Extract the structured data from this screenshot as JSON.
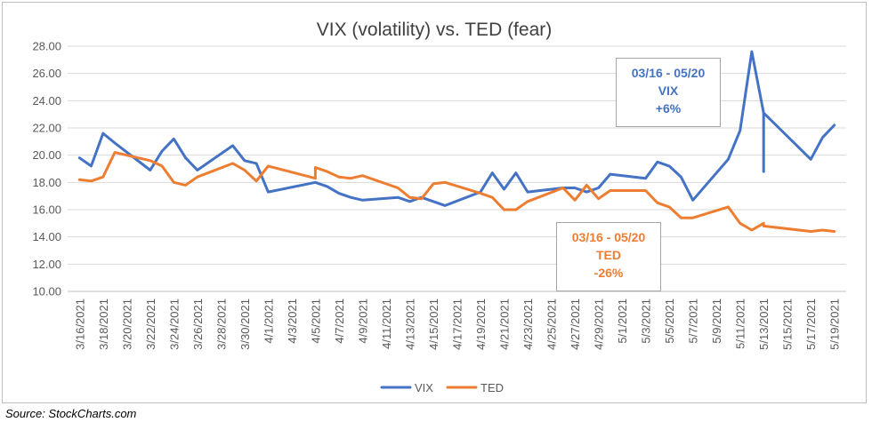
{
  "chart_data": {
    "type": "line",
    "title": "VIX (volatility) vs. TED (fear)",
    "xlabel": "",
    "ylabel": "",
    "ylim": [
      10,
      28
    ],
    "yticks": [
      "28.00",
      "26.00",
      "24.00",
      "22.00",
      "20.00",
      "18.00",
      "16.00",
      "14.00",
      "12.00",
      "10.00"
    ],
    "ytick_values": [
      28,
      26,
      24,
      22,
      20,
      18,
      16,
      14,
      12,
      10
    ],
    "categories": [
      "3/16/2021",
      "3/18/2021",
      "3/20/2021",
      "3/22/2021",
      "3/24/2021",
      "3/26/2021",
      "3/28/2021",
      "3/30/2021",
      "4/1/2021",
      "4/3/2021",
      "4/5/2021",
      "4/7/2021",
      "4/9/2021",
      "4/11/2021",
      "4/13/2021",
      "4/15/2021",
      "4/17/2021",
      "4/19/2021",
      "4/21/2021",
      "4/23/2021",
      "4/25/2021",
      "4/27/2021",
      "4/29/2021",
      "5/1/2021",
      "5/3/2021",
      "5/5/2021",
      "5/7/2021",
      "5/9/2021",
      "5/11/2021",
      "5/13/2021",
      "5/15/2021",
      "5/17/2021",
      "5/19/2021"
    ],
    "grid": true,
    "legend_position": "bottom",
    "series": [
      {
        "name": "VIX",
        "color": "#4472c4",
        "points": [
          [
            "2021-03-16",
            19.8
          ],
          [
            "2021-03-17",
            19.2
          ],
          [
            "2021-03-18",
            21.6
          ],
          [
            "2021-03-19",
            20.9
          ],
          [
            "2021-03-22",
            18.9
          ],
          [
            "2021-03-23",
            20.3
          ],
          [
            "2021-03-24",
            21.2
          ],
          [
            "2021-03-25",
            19.8
          ],
          [
            "2021-03-26",
            18.9
          ],
          [
            "2021-03-29",
            20.7
          ],
          [
            "2021-03-30",
            19.6
          ],
          [
            "2021-03-31",
            19.4
          ],
          [
            "2021-04-01",
            17.3
          ],
          [
            "2021-04-05",
            18.0
          ],
          [
            "2021-04-06",
            17.7
          ],
          [
            "2021-04-07",
            17.2
          ],
          [
            "2021-04-08",
            16.9
          ],
          [
            "2021-04-09",
            16.7
          ],
          [
            "2021-04-12",
            16.9
          ],
          [
            "2021-04-13",
            16.6
          ],
          [
            "2021-04-14",
            16.9
          ],
          [
            "2021-04-15",
            16.6
          ],
          [
            "2021-04-16",
            16.3
          ],
          [
            "2021-04-19",
            17.3
          ],
          [
            "2021-04-20",
            18.7
          ],
          [
            "2021-04-21",
            17.5
          ],
          [
            "2021-04-22",
            18.7
          ],
          [
            "2021-04-23",
            17.3
          ],
          [
            "2021-04-26",
            17.6
          ],
          [
            "2021-04-27",
            17.6
          ],
          [
            "2021-04-28",
            17.3
          ],
          [
            "2021-04-29",
            17.6
          ],
          [
            "2021-04-30",
            18.6
          ],
          [
            "2021-05-03",
            18.3
          ],
          [
            "2021-05-04",
            19.5
          ],
          [
            "2021-05-05",
            19.2
          ],
          [
            "2021-05-06",
            18.4
          ],
          [
            "2021-05-07",
            16.7
          ],
          [
            "2021-05-10",
            19.7
          ],
          [
            "2021-05-11",
            21.8
          ],
          [
            "2021-05-12",
            27.6
          ],
          [
            "2021-05-13",
            23.1
          ],
          [
            "2021-05-13",
            18.8
          ],
          [
            "2021-05-13",
            23.1
          ],
          [
            "2021-05-17",
            19.7
          ],
          [
            "2021-05-18",
            21.3
          ],
          [
            "2021-05-19",
            22.2
          ]
        ]
      },
      {
        "name": "TED",
        "color": "#ed7d31",
        "points": [
          [
            "2021-03-16",
            18.2
          ],
          [
            "2021-03-17",
            18.1
          ],
          [
            "2021-03-18",
            18.4
          ],
          [
            "2021-03-19",
            20.2
          ],
          [
            "2021-03-22",
            19.6
          ],
          [
            "2021-03-23",
            19.2
          ],
          [
            "2021-03-24",
            18.0
          ],
          [
            "2021-03-25",
            17.8
          ],
          [
            "2021-03-26",
            18.4
          ],
          [
            "2021-03-29",
            19.4
          ],
          [
            "2021-03-30",
            18.9
          ],
          [
            "2021-03-31",
            18.1
          ],
          [
            "2021-04-01",
            19.2
          ],
          [
            "2021-04-05",
            18.3
          ],
          [
            "2021-04-05",
            19.1
          ],
          [
            "2021-04-06",
            18.8
          ],
          [
            "2021-04-07",
            18.4
          ],
          [
            "2021-04-08",
            18.3
          ],
          [
            "2021-04-09",
            18.5
          ],
          [
            "2021-04-12",
            17.6
          ],
          [
            "2021-04-13",
            16.9
          ],
          [
            "2021-04-14",
            16.8
          ],
          [
            "2021-04-15",
            17.9
          ],
          [
            "2021-04-16",
            18.0
          ],
          [
            "2021-04-19",
            17.2
          ],
          [
            "2021-04-20",
            16.9
          ],
          [
            "2021-04-21",
            16.0
          ],
          [
            "2021-04-22",
            16.0
          ],
          [
            "2021-04-23",
            16.6
          ],
          [
            "2021-04-26",
            17.6
          ],
          [
            "2021-04-27",
            16.7
          ],
          [
            "2021-04-28",
            17.8
          ],
          [
            "2021-04-29",
            16.8
          ],
          [
            "2021-04-30",
            17.4
          ],
          [
            "2021-05-03",
            17.4
          ],
          [
            "2021-05-04",
            16.5
          ],
          [
            "2021-05-05",
            16.2
          ],
          [
            "2021-05-06",
            15.4
          ],
          [
            "2021-05-07",
            15.4
          ],
          [
            "2021-05-10",
            16.2
          ],
          [
            "2021-05-11",
            15.0
          ],
          [
            "2021-05-12",
            14.5
          ],
          [
            "2021-05-13",
            15.0
          ],
          [
            "2021-05-13",
            14.8
          ],
          [
            "2021-05-17",
            14.4
          ],
          [
            "2021-05-18",
            14.5
          ],
          [
            "2021-05-19",
            14.4
          ]
        ]
      }
    ],
    "annotations": [
      {
        "color": "#4472c4",
        "lines": [
          "03/16 - 05/20",
          "VIX",
          "+6%"
        ]
      },
      {
        "color": "#ed7d31",
        "lines": [
          "03/16 - 05/20",
          "TED",
          "-26%"
        ]
      }
    ]
  },
  "source_text": "Source:  StockCharts.com"
}
